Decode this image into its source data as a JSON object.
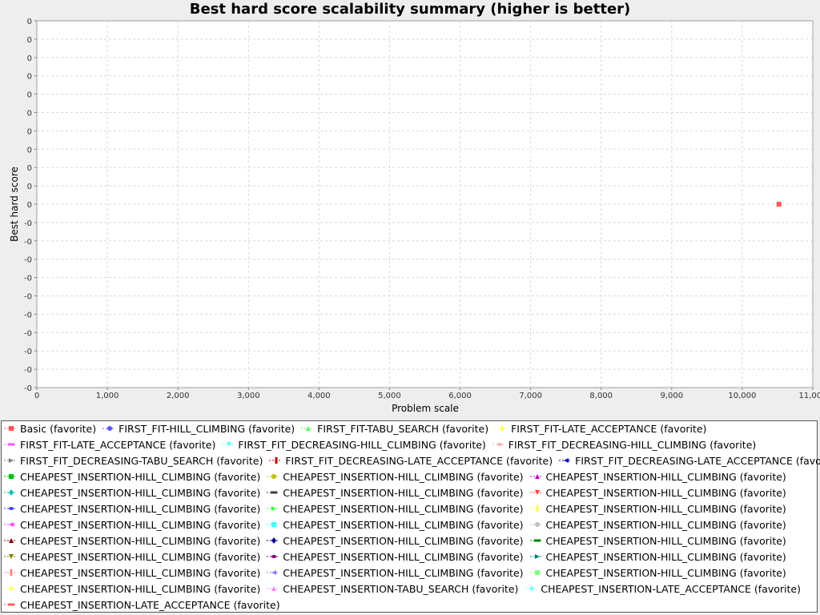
{
  "chart_data": {
    "type": "scatter",
    "title": "Best hard score scalability summary (higher is better)",
    "xlabel": "Problem scale",
    "ylabel": "Best hard score",
    "xlim": [
      0,
      11000
    ],
    "x_ticks": [
      "0",
      "1,000",
      "2,000",
      "3,000",
      "4,000",
      "5,000",
      "6,000",
      "7,000",
      "8,000",
      "9,000",
      "10,000",
      "11,000"
    ],
    "y_ticks": [
      "0",
      "0",
      "0",
      "0",
      "0",
      "0",
      "0",
      "0",
      "0",
      "0",
      "0",
      "-0",
      "-0",
      "-0",
      "-0",
      "-0",
      "-0",
      "-0",
      "-0",
      "-0",
      "-0"
    ],
    "grid": true,
    "legend_position": "bottom",
    "series": [
      {
        "name": "Basic (favorite)",
        "color": "#ff5555",
        "marker": "square",
        "points": [
          {
            "x": 10520,
            "y": 0
          }
        ]
      },
      {
        "name": "FIRST_FIT-HILL_CLIMBING (favorite)",
        "color": "#5555ff",
        "marker": "circle",
        "points": []
      },
      {
        "name": "FIRST_FIT-TABU_SEARCH (favorite)",
        "color": "#55ff55",
        "marker": "triangle-up",
        "points": []
      },
      {
        "name": "FIRST_FIT-LATE_ACCEPTANCE (favorite)",
        "color": "#ffff55",
        "marker": "diamond",
        "points": []
      },
      {
        "name": "FIRST_FIT-LATE_ACCEPTANCE (favorite)",
        "color": "#ff55ff",
        "marker": "hbar",
        "points": []
      },
      {
        "name": "FIRST_FIT_DECREASING-HILL_CLIMBING (favorite)",
        "color": "#55ffff",
        "marker": "triangle-down",
        "points": []
      },
      {
        "name": "FIRST_FIT_DECREASING-HILL_CLIMBING (favorite)",
        "color": "#ffafaf",
        "marker": "ellipse",
        "points": []
      },
      {
        "name": "FIRST_FIT_DECREASING-TABU_SEARCH (favorite)",
        "color": "#808080",
        "marker": "triangle-right",
        "points": []
      },
      {
        "name": "FIRST_FIT_DECREASING-LATE_ACCEPTANCE (favorite)",
        "color": "#c00000",
        "marker": "vbar",
        "points": []
      },
      {
        "name": "FIRST_FIT_DECREASING-LATE_ACCEPTANCE (favorite)",
        "color": "#0000c0",
        "marker": "triangle-left",
        "points": []
      },
      {
        "name": "CHEAPEST_INSERTION-HILL_CLIMBING (favorite)",
        "color": "#00c000",
        "marker": "square",
        "points": []
      },
      {
        "name": "CHEAPEST_INSERTION-HILL_CLIMBING (favorite)",
        "color": "#c0c000",
        "marker": "circle",
        "points": []
      },
      {
        "name": "CHEAPEST_INSERTION-HILL_CLIMBING (favorite)",
        "color": "#c000c0",
        "marker": "triangle-up",
        "points": []
      },
      {
        "name": "CHEAPEST_INSERTION-HILL_CLIMBING (favorite)",
        "color": "#00c0c0",
        "marker": "diamond",
        "points": []
      },
      {
        "name": "CHEAPEST_INSERTION-HILL_CLIMBING (favorite)",
        "color": "#404040",
        "marker": "hbar",
        "points": []
      },
      {
        "name": "CHEAPEST_INSERTION-HILL_CLIMBING (favorite)",
        "color": "#ff4040",
        "marker": "triangle-down",
        "points": []
      },
      {
        "name": "CHEAPEST_INSERTION-HILL_CLIMBING (favorite)",
        "color": "#4040ff",
        "marker": "ellipse",
        "points": []
      },
      {
        "name": "CHEAPEST_INSERTION-HILL_CLIMBING (favorite)",
        "color": "#40ff40",
        "marker": "triangle-right",
        "points": []
      },
      {
        "name": "CHEAPEST_INSERTION-HILL_CLIMBING (favorite)",
        "color": "#ffff40",
        "marker": "vbar",
        "points": []
      },
      {
        "name": "CHEAPEST_INSERTION-HILL_CLIMBING (favorite)",
        "color": "#ff40ff",
        "marker": "triangle-left",
        "points": []
      },
      {
        "name": "CHEAPEST_INSERTION-HILL_CLIMBING (favorite)",
        "color": "#40ffff",
        "marker": "square",
        "points": []
      },
      {
        "name": "CHEAPEST_INSERTION-HILL_CLIMBING (favorite)",
        "color": "#c0c0c0",
        "marker": "circle",
        "points": []
      },
      {
        "name": "CHEAPEST_INSERTION-HILL_CLIMBING (favorite)",
        "color": "#800000",
        "marker": "triangle-up",
        "points": []
      },
      {
        "name": "CHEAPEST_INSERTION-HILL_CLIMBING (favorite)",
        "color": "#000080",
        "marker": "diamond",
        "points": []
      },
      {
        "name": "CHEAPEST_INSERTION-HILL_CLIMBING (favorite)",
        "color": "#008000",
        "marker": "hbar",
        "points": []
      },
      {
        "name": "CHEAPEST_INSERTION-HILL_CLIMBING (favorite)",
        "color": "#808000",
        "marker": "triangle-down",
        "points": []
      },
      {
        "name": "CHEAPEST_INSERTION-HILL_CLIMBING (favorite)",
        "color": "#800080",
        "marker": "ellipse",
        "points": []
      },
      {
        "name": "CHEAPEST_INSERTION-HILL_CLIMBING (favorite)",
        "color": "#008080",
        "marker": "triangle-right",
        "points": []
      },
      {
        "name": "CHEAPEST_INSERTION-HILL_CLIMBING (favorite)",
        "color": "#ff8080",
        "marker": "vbar",
        "points": []
      },
      {
        "name": "CHEAPEST_INSERTION-HILL_CLIMBING (favorite)",
        "color": "#8080ff",
        "marker": "triangle-left",
        "points": []
      },
      {
        "name": "CHEAPEST_INSERTION-HILL_CLIMBING (favorite)",
        "color": "#80ff80",
        "marker": "square",
        "points": []
      },
      {
        "name": "CHEAPEST_INSERTION-HILL_CLIMBING (favorite)",
        "color": "#ffff80",
        "marker": "circle",
        "points": []
      },
      {
        "name": "CHEAPEST_INSERTION-TABU_SEARCH (favorite)",
        "color": "#ff80ff",
        "marker": "triangle-up",
        "points": []
      },
      {
        "name": "CHEAPEST_INSERTION-LATE_ACCEPTANCE (favorite)",
        "color": "#80ffff",
        "marker": "diamond",
        "points": []
      },
      {
        "name": "CHEAPEST_INSERTION-LATE_ACCEPTANCE (favorite)",
        "color": "#ff6060",
        "marker": "hbar",
        "points": []
      }
    ]
  }
}
